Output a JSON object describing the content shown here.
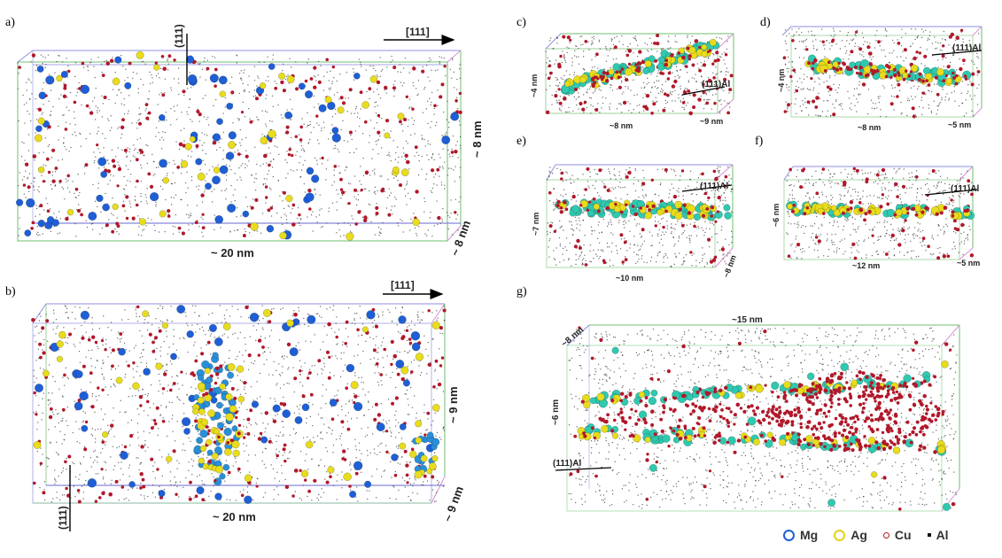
{
  "panels": {
    "a": {
      "label": "a)",
      "dir_label": "[111]",
      "plane_label": "(111)",
      "dim_x": "~ 20 nm",
      "dim_y": "~ 8 nm",
      "dim_z": "~ 8 nm"
    },
    "b": {
      "label": "b)",
      "dir_label": "[111]",
      "plane_label": "(111)",
      "dim_x": "~ 20 nm",
      "dim_y": "~ 9 nm",
      "dim_z": "~ 9 nm"
    },
    "c": {
      "label": "c)",
      "dim_x": "~8 nm",
      "dim_y": "~4 nm",
      "dim_z": "~9 nm",
      "plane_label": "(111)Al"
    },
    "d": {
      "label": "d)",
      "dim_x": "~8 nm",
      "dim_y": "~4 nm",
      "dim_z": "~5 nm",
      "plane_label": "(111)Al"
    },
    "e": {
      "label": "e)",
      "dim_x": "~10 nm",
      "dim_y": "~7 nm",
      "dim_z": "~8 nm",
      "plane_label": "(111)Al"
    },
    "f": {
      "label": "f)",
      "dim_x": "~12 nm",
      "dim_y": "~6 nm",
      "dim_z": "~5 nm",
      "plane_label": "(111)Al"
    },
    "g": {
      "label": "g)",
      "dim_x": "~15 nm",
      "dim_y": "~6 nm",
      "dim_z": "~8 nm",
      "plane_label": "(111)Al"
    }
  },
  "legend": [
    {
      "name": "Mg",
      "icon": "mg-atom-icon",
      "color": "#1e5fd6"
    },
    {
      "name": "Ag",
      "icon": "ag-atom-icon",
      "color": "#e3d21a"
    },
    {
      "name": "Cu",
      "icon": "cu-atom-icon",
      "color": "#b1182a"
    },
    {
      "name": "Al",
      "icon": "al-atom-icon",
      "color": "#111111"
    }
  ],
  "colors": {
    "mg": "#1e5fd6",
    "mg_b": "#2a8fd8",
    "ag": "#e8dc1c",
    "cu": "#b1182a",
    "al": "#333333",
    "cyan": "#2fc9b0"
  }
}
